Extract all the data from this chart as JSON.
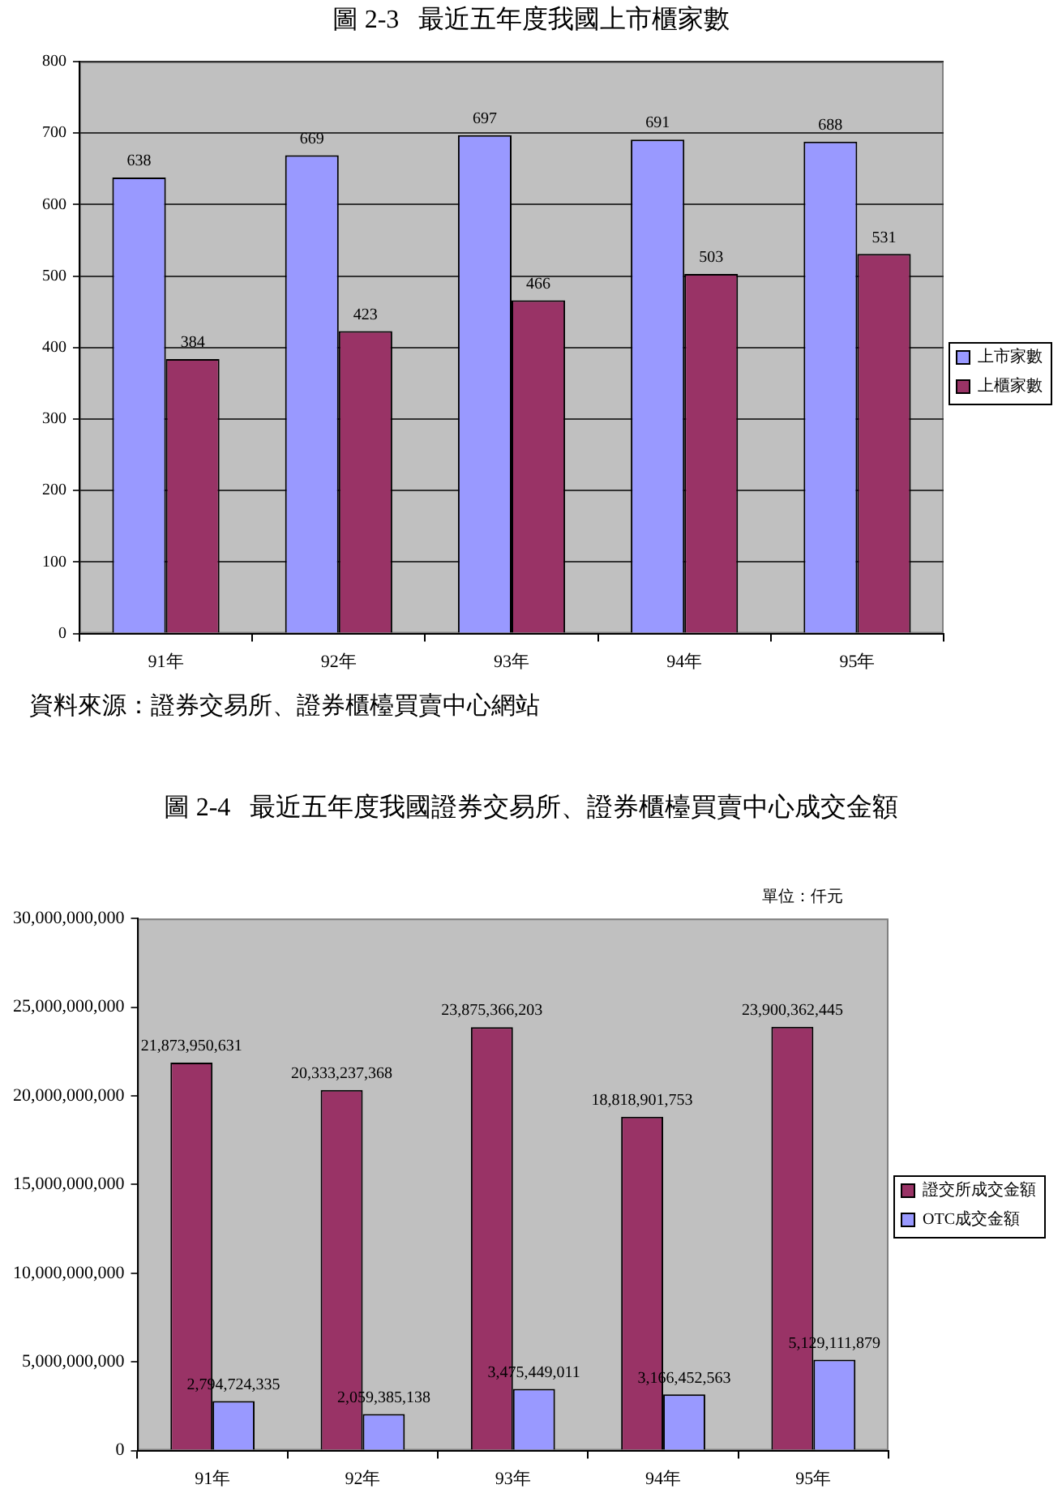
{
  "chart_data": [
    {
      "type": "bar",
      "title": "圖 2-3   最近五年度我國上市櫃家數",
      "categories": [
        "91年",
        "92年",
        "93年",
        "94年",
        "95年"
      ],
      "series": [
        {
          "name": "上市家數",
          "color": "#9999ff",
          "values": [
            638,
            669,
            697,
            691,
            688
          ]
        },
        {
          "name": "上櫃家數",
          "color": "#993366",
          "values": [
            384,
            423,
            466,
            503,
            531
          ]
        }
      ],
      "ylim": [
        0,
        800
      ],
      "yticks": [
        0,
        100,
        200,
        300,
        400,
        500,
        600,
        700,
        800
      ],
      "grid": "y",
      "legend": "right",
      "data_labels": true,
      "annotations": [
        "資料來源：證券交易所、證券櫃檯買賣中心網站"
      ]
    },
    {
      "type": "bar",
      "title": "圖 2-4   最近五年度我國證券交易所、證券櫃檯買賣中心成交金額",
      "categories": [
        "91年",
        "92年",
        "93年",
        "94年",
        "95年"
      ],
      "series": [
        {
          "name": "證交所成交金額",
          "color": "#993366",
          "values": [
            21873950631,
            20333237368,
            23875366203,
            18818901753,
            23900362445
          ],
          "value_labels": [
            "21,873,950,631",
            "20,333,237,368",
            "23,875,366,203",
            "18,818,901,753",
            "23,900,362,445"
          ]
        },
        {
          "name": "OTC成交金額",
          "color": "#9999ff",
          "values": [
            2794724335,
            2059385138,
            3475449011,
            3166452563,
            5129111879
          ],
          "value_labels": [
            "2,794,724,335",
            "2,059,385,138",
            "3,475,449,011",
            "3,166,452,563",
            "5,129,111,879"
          ]
        }
      ],
      "ylim": [
        0,
        30000000000
      ],
      "yticks": [
        {
          "value": 0,
          "label": "0"
        },
        {
          "value": 5000000000,
          "label": "5,000,000,000"
        },
        {
          "value": 10000000000,
          "label": "10,000,000,000"
        },
        {
          "value": 15000000000,
          "label": "15,000,000,000"
        },
        {
          "value": 20000000000,
          "label": "20,000,000,000"
        },
        {
          "value": 25000000000,
          "label": "25,000,000,000"
        },
        {
          "value": 30000000000,
          "label": "30,000,000,000"
        }
      ],
      "grid": false,
      "legend": "right",
      "annotations": [
        "單位：仟元"
      ]
    }
  ]
}
